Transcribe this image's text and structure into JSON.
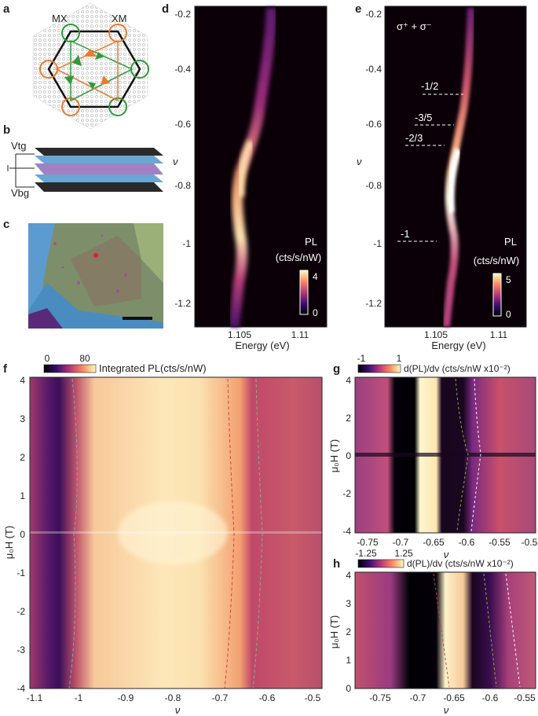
{
  "panels": {
    "a": {
      "letter": "a",
      "labels": [
        "MX",
        "XM"
      ]
    },
    "b": {
      "letter": "b",
      "labels": [
        "Vtg",
        "Vbg"
      ]
    },
    "c": {
      "letter": "c"
    },
    "d": {
      "letter": "d",
      "y_ticks": [
        "-0.2",
        "-0.4",
        "-0.6",
        "-0.8",
        "-1",
        "-1.2"
      ],
      "x_ticks": [
        "1.105",
        "1.11"
      ],
      "x_label": "Energy (eV)",
      "y_label": "ν",
      "cbar_title": [
        "PL",
        "(cts/s/nW)"
      ],
      "cbar_ticks": [
        "4",
        "0"
      ]
    },
    "e": {
      "letter": "e",
      "title": "σ⁺ + σ⁻",
      "y_ticks": [
        "-0.2",
        "-0.4",
        "-0.6",
        "-0.8",
        "-1",
        "-1.2"
      ],
      "x_ticks": [
        "1.105",
        "1.11"
      ],
      "x_label": "Energy (eV)",
      "y_label": "ν",
      "annotations": [
        "-1/2",
        "-3/5",
        "-2/3",
        "-1"
      ],
      "cbar_title": [
        "PL",
        "(cts/s/nW)"
      ],
      "cbar_ticks": [
        "5",
        "0"
      ]
    },
    "f": {
      "letter": "f",
      "cbar_ticks": [
        "0",
        "80"
      ],
      "cbar_title": "Integrated PL(cts/s/nW)",
      "y_ticks": [
        "4",
        "3",
        "2",
        "1",
        "0",
        "-1",
        "-2",
        "-3",
        "-4"
      ],
      "x_ticks": [
        "-1.1",
        "-1",
        "-0.9",
        "-0.8",
        "-0.7",
        "-0.6",
        "-0.5"
      ],
      "y_label": "μ₀H (T)",
      "x_label": "ν"
    },
    "g": {
      "letter": "g",
      "cbar_ticks": [
        "-1",
        "1"
      ],
      "cbar_title": "d(PL)/dv (cts/s/nW x10⁻²)",
      "y_ticks": [
        "4",
        "2",
        "0",
        "-2",
        "-4"
      ],
      "x_ticks": [
        "-0.75",
        "-0.7",
        "-0.65",
        "-0.6",
        "-0.55",
        "-0.5"
      ],
      "y_label": "μ₀H (T)",
      "x_label": "ν"
    },
    "h": {
      "letter": "h",
      "cbar_ticks": [
        "-1.25",
        "1.25"
      ],
      "cbar_title": "d(PL)/dv (cts/s/nW x10⁻²)",
      "y_ticks": [
        "4",
        "3",
        "2",
        "1",
        "0"
      ],
      "x_ticks": [
        "-0.75",
        "-0.7",
        "-0.65",
        "-0.6",
        "-0.55"
      ],
      "y_label": "μ₀H (T)",
      "x_label": "ν"
    }
  },
  "colors": {
    "dark": "#0c0008",
    "magenta": "#7a2081",
    "orange": "#e8653a",
    "bright": "#fff6d2",
    "hex_green": "#2f9a3c",
    "hex_orange": "#ea7a2e"
  }
}
